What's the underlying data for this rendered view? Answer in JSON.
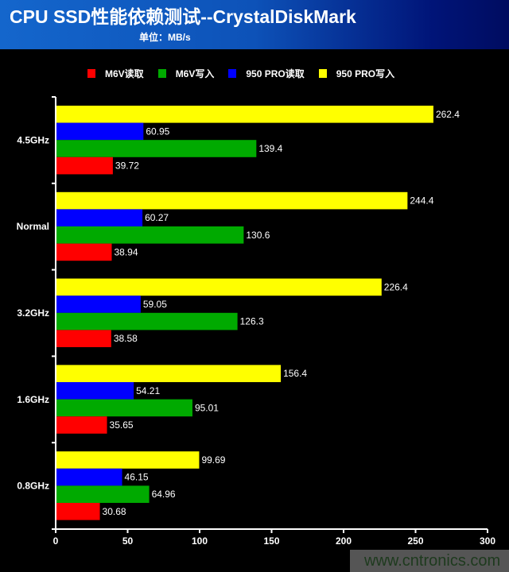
{
  "header": {
    "title": "CPU SSD性能依赖测试--CrystalDiskMark",
    "unit": "单位：MB/s"
  },
  "watermark": "www.cntronics.com",
  "chart_data": {
    "type": "bar",
    "orientation": "horizontal",
    "title": "CPU SSD性能依赖测试--CrystalDiskMark",
    "subtitle": "单位：MB/s",
    "categories": [
      "4.5GHz",
      "Normal",
      "3.2GHz",
      "1.6GHz",
      "0.8GHz"
    ],
    "series": [
      {
        "name": "M6V读取",
        "color": "#ff0000",
        "values": [
          39.72,
          38.94,
          38.58,
          35.65,
          30.68
        ]
      },
      {
        "name": "M6V写入",
        "color": "#00aa00",
        "values": [
          139.4,
          130.6,
          126.3,
          95.01,
          64.96
        ]
      },
      {
        "name": "950 PRO读取",
        "color": "#0000ff",
        "values": [
          60.95,
          60.27,
          59.05,
          54.21,
          46.15
        ]
      },
      {
        "name": "950 PRO写入",
        "color": "#ffff00",
        "values": [
          262.4,
          244.4,
          226.4,
          156.4,
          99.69
        ]
      }
    ],
    "xlim": [
      0,
      300
    ],
    "xticks": [
      0,
      50,
      100,
      150,
      200,
      250,
      300
    ],
    "grid": false,
    "legend": "top"
  }
}
